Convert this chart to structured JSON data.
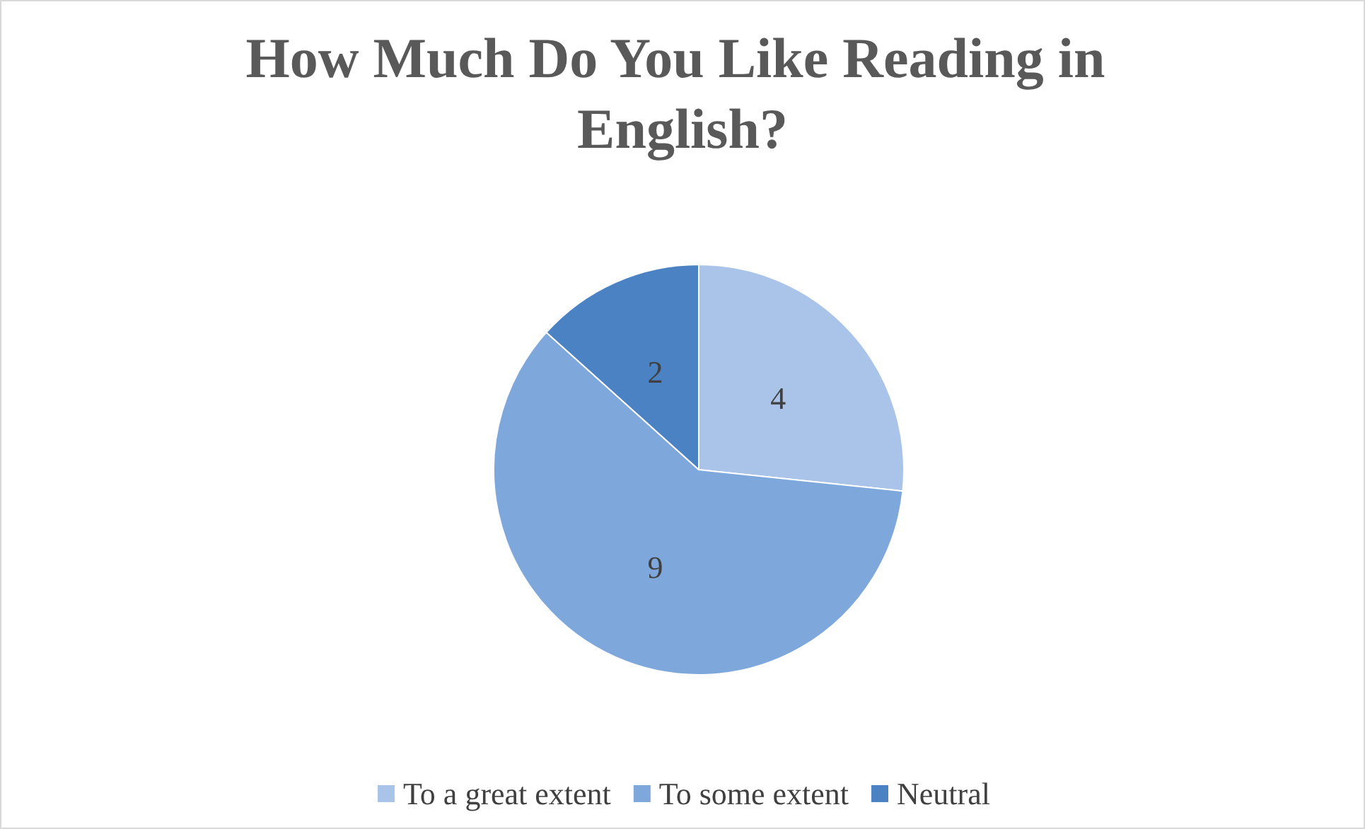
{
  "chart_data": {
    "type": "pie",
    "title": "How Much Do You Like Reading in English?",
    "categories": [
      "To a great extent",
      "To some extent",
      "Neutral"
    ],
    "values": [
      4,
      9,
      2
    ],
    "colors": [
      "#a9c4e8",
      "#7ea8dc",
      "#4a82c4"
    ],
    "data_labels": true,
    "legend": "bottom"
  }
}
